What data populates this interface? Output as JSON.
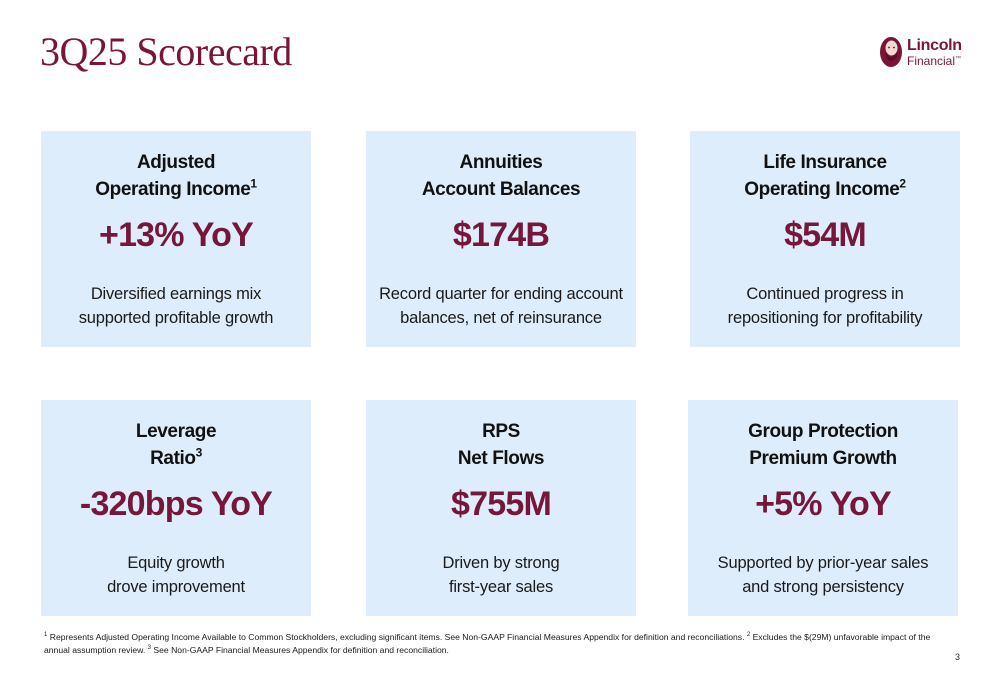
{
  "page": {
    "title": "3Q25 Scorecard",
    "page_number": "3"
  },
  "logo": {
    "name": "Lincoln",
    "sub": "Financial",
    "trademark": "™"
  },
  "cards": [
    {
      "heading_line1": "Adjusted",
      "heading_line2": "Operating Income",
      "footnote_ref": "1",
      "value": "+13% YoY",
      "desc_line1": "Diversified earnings mix",
      "desc_line2": "supported profitable growth"
    },
    {
      "heading_line1": "Annuities",
      "heading_line2": "Account Balances",
      "footnote_ref": "",
      "value": "$174B",
      "desc_line1": "Record quarter for ending account",
      "desc_line2": "balances, net of reinsurance"
    },
    {
      "heading_line1": "Life Insurance",
      "heading_line2": "Operating Income",
      "footnote_ref": "2",
      "value": "$54M",
      "desc_line1": "Continued progress in",
      "desc_line2": "repositioning for profitability"
    },
    {
      "heading_line1": "Leverage",
      "heading_line2": "Ratio",
      "footnote_ref": "3",
      "value": "-320bps YoY",
      "desc_line1": "Equity growth",
      "desc_line2": "drove improvement"
    },
    {
      "heading_line1": "RPS",
      "heading_line2": "Net Flows",
      "footnote_ref": "",
      "value": "$755M",
      "desc_line1": "Driven by strong",
      "desc_line2": "first-year sales"
    },
    {
      "heading_line1": "Group Protection",
      "heading_line2": "Premium Growth",
      "footnote_ref": "",
      "value": "+5% YoY",
      "desc_line1": "Supported by prior-year sales",
      "desc_line2": "and strong persistency"
    }
  ],
  "footnotes": {
    "ref1": "1",
    "text1": " Represents Adjusted Operating Income Available to Common Stockholders, excluding significant items. See Non-GAAP Financial Measures Appendix for definition and reconciliations. ",
    "ref2": "2",
    "text2": " Excludes the $(29M) unfavorable impact of the annual assumption review. ",
    "ref3": "3",
    "text3": " See Non-GAAP Financial Measures Appendix for definition and reconciliation."
  },
  "colors": {
    "brand": "#7a1538",
    "card_bg": "#deedfb"
  }
}
